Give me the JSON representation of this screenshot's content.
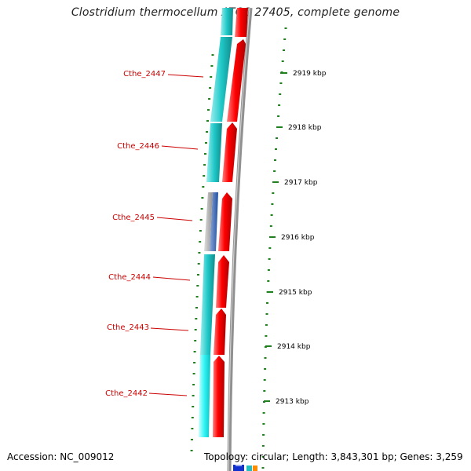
{
  "title": "Clostridium thermocellum ATCC 27405, complete genome",
  "footer": {
    "accession": "Accession: NC_009012",
    "topology": "Topology: circular; Length: 3,843,301 bp; Genes: 3,259"
  },
  "genes": [
    {
      "label": "Cthe_2447"
    },
    {
      "label": "Cthe_2446"
    },
    {
      "label": "Cthe_2445"
    },
    {
      "label": "Cthe_2444"
    },
    {
      "label": "Cthe_2443"
    },
    {
      "label": "Cthe_2442"
    }
  ],
  "ruler": [
    {
      "label": "2919 kbp"
    },
    {
      "label": "2918 kbp"
    },
    {
      "label": "2917 kbp"
    },
    {
      "label": "2916 kbp"
    },
    {
      "label": "2915 kbp"
    },
    {
      "label": "2914 kbp"
    },
    {
      "label": "2913 kbp"
    }
  ],
  "colors": {
    "forward_strand": "#ff0000",
    "cog_track": "#20c8c8",
    "cog_track_light": "#40ffff",
    "backbone": "#808080",
    "ticks": "#208020",
    "gene_label": "#cc0000"
  }
}
